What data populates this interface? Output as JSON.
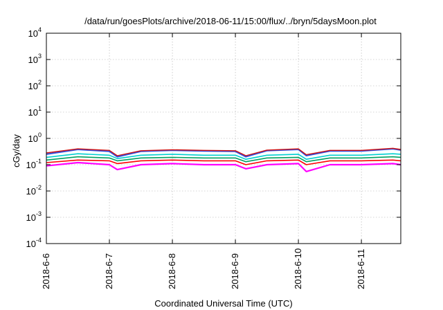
{
  "chart_data": {
    "type": "line",
    "title": "/data/run/goesPlots/archive/2018-06-11/15:00/flux/../bryn/5daysMoon.plot",
    "xlabel": "Coordinated Universal Time (UTC)",
    "ylabel": "cGy/day",
    "yscale": "log",
    "ylim": [
      0.0001,
      10000
    ],
    "xlim": [
      "2018-06-06T00:00",
      "2018-06-11T15:00"
    ],
    "grid": true,
    "y_ticks": [
      {
        "base": "10",
        "exp": "-4"
      },
      {
        "base": "10",
        "exp": "-3"
      },
      {
        "base": "10",
        "exp": "-2"
      },
      {
        "base": "10",
        "exp": "-1"
      },
      {
        "base": "10",
        "exp": "0"
      },
      {
        "base": "10",
        "exp": "1"
      },
      {
        "base": "10",
        "exp": "2"
      },
      {
        "base": "10",
        "exp": "3"
      },
      {
        "base": "10",
        "exp": "4"
      }
    ],
    "x_ticks": [
      "2018-6-6",
      "2018-6-7",
      "2018-6-8",
      "2018-6-9",
      "2018-6-10",
      "2018-6-11"
    ],
    "x": [
      "2018-06-06T00:00",
      "2018-06-06T12:00",
      "2018-06-07T00:00",
      "2018-06-07T03:00",
      "2018-06-07T12:00",
      "2018-06-08T00:00",
      "2018-06-08T12:00",
      "2018-06-09T00:00",
      "2018-06-09T04:00",
      "2018-06-09T12:00",
      "2018-06-10T00:00",
      "2018-06-10T03:00",
      "2018-06-10T12:00",
      "2018-06-11T00:00",
      "2018-06-11T12:00",
      "2018-06-11T15:00"
    ],
    "series": [
      {
        "color": "#ff00ff",
        "values": [
          0.09,
          0.12,
          0.1,
          0.065,
          0.1,
          0.11,
          0.1,
          0.1,
          0.07,
          0.1,
          0.11,
          0.055,
          0.1,
          0.1,
          0.11,
          0.1
        ]
      },
      {
        "color": "#ff0000",
        "values": [
          0.12,
          0.15,
          0.14,
          0.11,
          0.14,
          0.15,
          0.14,
          0.14,
          0.1,
          0.14,
          0.15,
          0.1,
          0.14,
          0.14,
          0.15,
          0.14
        ]
      },
      {
        "color": "#00a060",
        "values": [
          0.15,
          0.2,
          0.18,
          0.14,
          0.18,
          0.19,
          0.18,
          0.18,
          0.13,
          0.18,
          0.19,
          0.13,
          0.18,
          0.18,
          0.2,
          0.19
        ]
      },
      {
        "color": "#00d0d0",
        "values": [
          0.19,
          0.26,
          0.23,
          0.17,
          0.23,
          0.25,
          0.23,
          0.23,
          0.16,
          0.23,
          0.25,
          0.16,
          0.23,
          0.23,
          0.26,
          0.25
        ]
      },
      {
        "color": "#3050e0",
        "values": [
          0.25,
          0.38,
          0.32,
          0.2,
          0.32,
          0.35,
          0.33,
          0.32,
          0.2,
          0.34,
          0.38,
          0.22,
          0.33,
          0.33,
          0.4,
          0.36
        ]
      },
      {
        "color": "#d01010",
        "values": [
          0.28,
          0.4,
          0.35,
          0.22,
          0.34,
          0.37,
          0.35,
          0.34,
          0.22,
          0.36,
          0.4,
          0.24,
          0.35,
          0.35,
          0.42,
          0.38
        ]
      }
    ]
  }
}
